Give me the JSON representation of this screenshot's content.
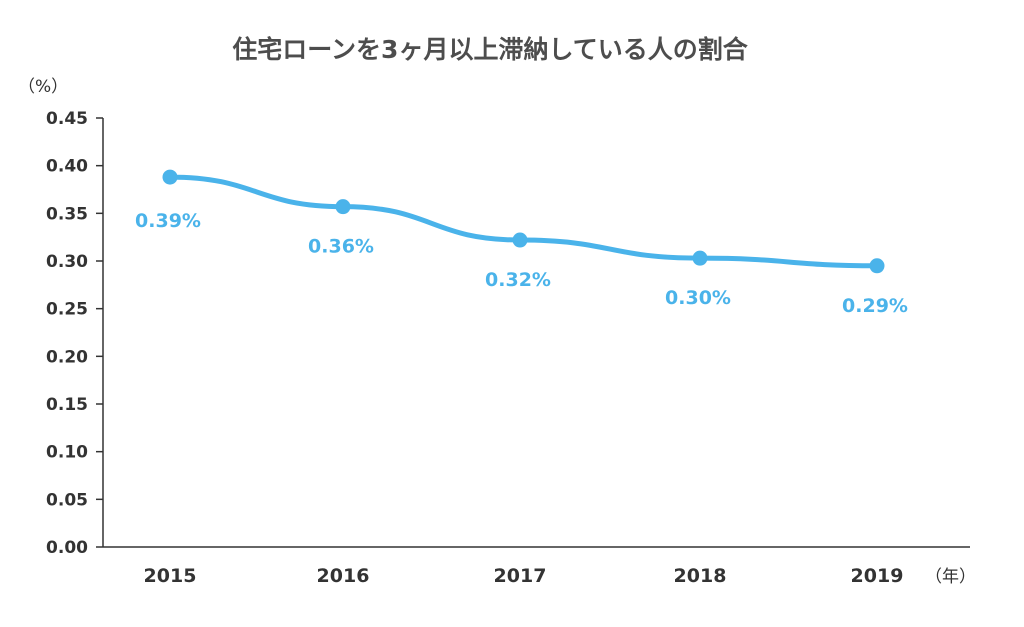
{
  "chart_data": {
    "type": "line",
    "title": "住宅ローンを3ヶ月以上滞納している人の割合",
    "y_unit_label": "（%）",
    "x_unit_label": "（年）",
    "categories": [
      "2015",
      "2016",
      "2017",
      "2018",
      "2019"
    ],
    "series": [
      {
        "values": [
          0.388,
          0.357,
          0.322,
          0.303,
          0.295
        ],
        "data_labels": [
          "0.39%",
          "0.36%",
          "0.32%",
          "0.30%",
          "0.29%"
        ],
        "color": "#4ab3ea"
      }
    ],
    "ylim": [
      0,
      0.45
    ],
    "yticks": [
      "0.00",
      "0.05",
      "0.10",
      "0.15",
      "0.20",
      "0.25",
      "0.30",
      "0.35",
      "0.40",
      "0.45"
    ],
    "grid": false,
    "legend": "none",
    "axis_color": "#333333",
    "text_color": "#333333"
  }
}
